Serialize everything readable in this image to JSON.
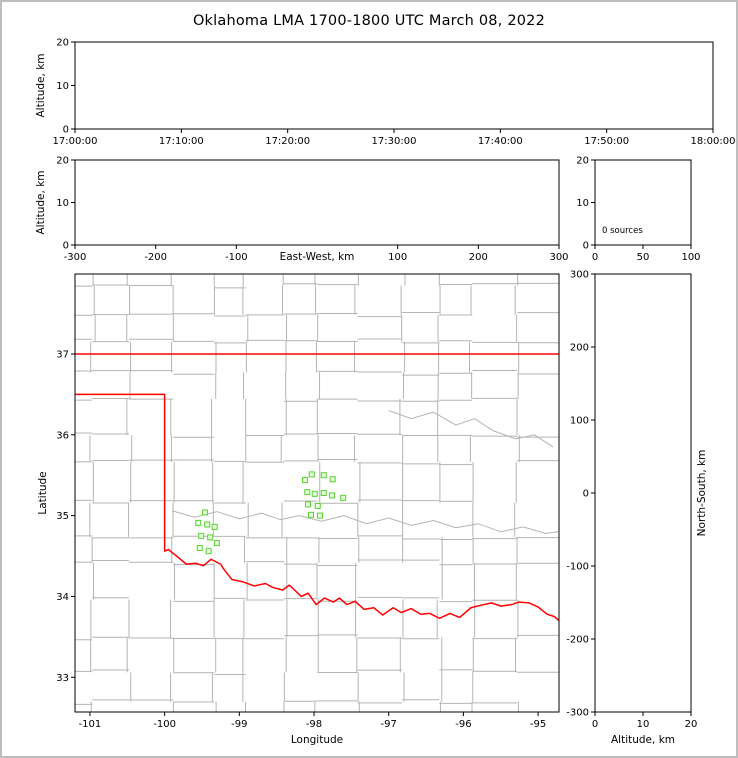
{
  "title": "Oklahoma LMA 1700-1800 UTC March 08, 2022",
  "colors": {
    "axis": "#000000",
    "state_border": "#ff0000",
    "county_lines": "#b4b4b4",
    "river_lines": "#b4b4b4",
    "source_marker_stroke": "#55d22e",
    "source_marker_fill": "#e9ffdf",
    "figure_frame": "#bdbdbd"
  },
  "chart_data": [
    {
      "id": "time_height",
      "type": "scatter",
      "xlabel": "",
      "ylabel": "Altitude, km",
      "xlim": [
        0,
        60
      ],
      "ylim": [
        0,
        20
      ],
      "xticks": [
        0,
        10,
        20,
        30,
        40,
        50,
        60
      ],
      "xtick_labels": [
        "17:00:00",
        "17:10:00",
        "17:20:00",
        "17:30:00",
        "17:40:00",
        "17:50:00",
        "18:00:00"
      ],
      "yticks": [
        0,
        10,
        20
      ],
      "ytick_labels": [
        "0",
        "10",
        "20"
      ],
      "points": []
    },
    {
      "id": "ew_height",
      "type": "scatter",
      "xlabel": "East-West, km",
      "xlabel_inline": true,
      "ylabel": "Altitude, km",
      "xlim": [
        -300,
        300
      ],
      "ylim": [
        0,
        20
      ],
      "xticks": [
        -300,
        -200,
        -100,
        100,
        200,
        300
      ],
      "xtick_labels": [
        "-300",
        "-200",
        "-100",
        "100",
        "200",
        "300"
      ],
      "yticks": [
        0,
        10,
        20
      ],
      "ytick_labels": [
        "0",
        "10",
        "20"
      ],
      "points": []
    },
    {
      "id": "alt_histogram",
      "type": "scatter",
      "xlabel": "",
      "ylabel": "",
      "xlim": [
        0,
        100
      ],
      "ylim": [
        0,
        20
      ],
      "xticks": [
        0,
        50,
        100
      ],
      "xtick_labels": [
        "0",
        "50",
        "100"
      ],
      "yticks": [
        0,
        10,
        20
      ],
      "ytick_labels": [
        "0",
        "10",
        "20"
      ],
      "annotation": {
        "text": "0 sources"
      },
      "points": []
    },
    {
      "id": "plan_view",
      "type": "scatter",
      "xlabel": "Longitude",
      "ylabel": "Latitude",
      "xlim": [
        -101.2,
        -94.72
      ],
      "ylim": [
        32.57,
        37.99
      ],
      "xticks": [
        -101,
        -100,
        -99,
        -98,
        -97,
        -96,
        -95
      ],
      "xtick_labels": [
        "-101",
        "-100",
        "-99",
        "-98",
        "-97",
        "-96",
        "-95"
      ],
      "yticks": [
        33,
        34,
        35,
        36,
        37
      ],
      "ytick_labels": [
        "33",
        "34",
        "35",
        "36",
        "37"
      ],
      "marker": "square",
      "points": [
        [
          -98.12,
          35.44
        ],
        [
          -98.03,
          35.51
        ],
        [
          -97.87,
          35.5
        ],
        [
          -97.75,
          35.45
        ],
        [
          -98.09,
          35.29
        ],
        [
          -97.99,
          35.27
        ],
        [
          -97.87,
          35.28
        ],
        [
          -97.76,
          35.25
        ],
        [
          -97.61,
          35.22
        ],
        [
          -98.08,
          35.14
        ],
        [
          -97.95,
          35.12
        ],
        [
          -98.04,
          35.01
        ],
        [
          -97.92,
          35.0
        ],
        [
          -99.46,
          35.04
        ],
        [
          -99.55,
          34.91
        ],
        [
          -99.43,
          34.89
        ],
        [
          -99.33,
          34.86
        ],
        [
          -99.51,
          34.75
        ],
        [
          -99.39,
          34.73
        ],
        [
          -99.53,
          34.6
        ],
        [
          -99.41,
          34.56
        ],
        [
          -99.3,
          34.66
        ]
      ],
      "state_border": [
        [
          [
            -101.2,
            37.0
          ],
          [
            -94.72,
            37.0
          ]
        ],
        [
          [
            -101.2,
            36.5
          ],
          [
            -100.0,
            36.5
          ],
          [
            -100.0,
            34.56
          ],
          [
            -99.95,
            34.58
          ],
          [
            -99.84,
            34.5
          ],
          [
            -99.71,
            34.4
          ],
          [
            -99.58,
            34.41
          ],
          [
            -99.48,
            34.38
          ],
          [
            -99.38,
            34.46
          ],
          [
            -99.25,
            34.4
          ],
          [
            -99.21,
            34.34
          ],
          [
            -99.1,
            34.21
          ],
          [
            -98.95,
            34.18
          ],
          [
            -98.8,
            34.13
          ],
          [
            -98.65,
            34.16
          ],
          [
            -98.55,
            34.11
          ],
          [
            -98.42,
            34.08
          ],
          [
            -98.33,
            34.14
          ],
          [
            -98.17,
            34.0
          ],
          [
            -98.08,
            34.04
          ],
          [
            -97.97,
            33.9
          ],
          [
            -97.86,
            33.98
          ],
          [
            -97.74,
            33.93
          ],
          [
            -97.66,
            33.98
          ],
          [
            -97.56,
            33.9
          ],
          [
            -97.45,
            33.94
          ],
          [
            -97.33,
            33.84
          ],
          [
            -97.2,
            33.86
          ],
          [
            -97.08,
            33.77
          ],
          [
            -96.94,
            33.86
          ],
          [
            -96.83,
            33.8
          ],
          [
            -96.7,
            33.85
          ],
          [
            -96.57,
            33.78
          ],
          [
            -96.45,
            33.79
          ],
          [
            -96.32,
            33.73
          ],
          [
            -96.18,
            33.79
          ],
          [
            -96.05,
            33.74
          ],
          [
            -95.9,
            33.86
          ],
          [
            -95.77,
            33.89
          ],
          [
            -95.62,
            33.92
          ],
          [
            -95.5,
            33.88
          ],
          [
            -95.35,
            33.9
          ],
          [
            -95.26,
            33.93
          ],
          [
            -95.12,
            33.92
          ],
          [
            -95.0,
            33.87
          ],
          [
            -94.88,
            33.78
          ],
          [
            -94.78,
            33.75
          ],
          [
            -94.72,
            33.7
          ]
        ]
      ],
      "rivers": [
        [
          [
            -99.9,
            35.06
          ],
          [
            -99.6,
            34.98
          ],
          [
            -99.3,
            35.05
          ],
          [
            -99.0,
            34.96
          ],
          [
            -98.7,
            35.03
          ],
          [
            -98.45,
            34.95
          ],
          [
            -98.2,
            35.0
          ],
          [
            -97.9,
            34.93
          ],
          [
            -97.6,
            35.0
          ],
          [
            -97.3,
            34.9
          ],
          [
            -97.0,
            34.97
          ],
          [
            -96.7,
            34.88
          ],
          [
            -96.4,
            34.94
          ],
          [
            -96.1,
            34.85
          ],
          [
            -95.8,
            34.9
          ],
          [
            -95.5,
            34.8
          ],
          [
            -95.2,
            34.86
          ],
          [
            -94.9,
            34.78
          ],
          [
            -94.73,
            34.8
          ]
        ],
        [
          [
            -97.0,
            36.3
          ],
          [
            -96.7,
            36.2
          ],
          [
            -96.4,
            36.28
          ],
          [
            -96.1,
            36.12
          ],
          [
            -95.85,
            36.2
          ],
          [
            -95.6,
            36.05
          ],
          [
            -95.3,
            35.95
          ],
          [
            -95.05,
            36.0
          ],
          [
            -94.8,
            35.85
          ]
        ]
      ]
    },
    {
      "id": "ns_alt",
      "type": "scatter",
      "xlabel": "Altitude, km",
      "ylabel_right": "North-South, km",
      "xlim": [
        0,
        20
      ],
      "ylim": [
        -300,
        300
      ],
      "xticks": [
        0,
        10,
        20
      ],
      "xtick_labels": [
        "0",
        "10",
        "20"
      ],
      "yticks": [
        -300,
        -200,
        -100,
        0,
        100,
        200,
        300
      ],
      "ytick_labels": [
        "-300",
        "-200",
        "-100",
        "0",
        "100",
        "200",
        "300"
      ],
      "points": []
    }
  ]
}
